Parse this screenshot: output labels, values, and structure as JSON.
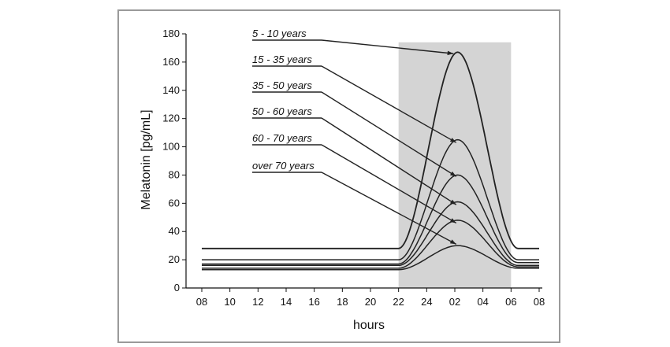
{
  "chart_data": {
    "type": "line",
    "title": "",
    "xlabel": "hours",
    "ylabel": "Melatonin [pg/mL]",
    "x_ticks": [
      "08",
      "10",
      "12",
      "14",
      "16",
      "18",
      "20",
      "22",
      "24",
      "02",
      "04",
      "06",
      "08"
    ],
    "y_ticks": [
      0,
      20,
      40,
      60,
      80,
      100,
      120,
      140,
      160,
      180
    ],
    "ylim": [
      0,
      180
    ],
    "grid": false,
    "shaded_region": {
      "from_hours": 22,
      "to_hours": 30
    },
    "series": [
      {
        "name": "5 - 10 years",
        "baseline": 28,
        "peak": 167,
        "end": 28
      },
      {
        "name": "15 - 35 years",
        "baseline": 20,
        "peak": 105,
        "end": 20
      },
      {
        "name": "35 - 50 years",
        "baseline": 17,
        "peak": 80,
        "end": 18
      },
      {
        "name": "50 - 60 years",
        "baseline": 16,
        "peak": 61,
        "end": 16
      },
      {
        "name": "60 - 70 years",
        "baseline": 14,
        "peak": 48,
        "end": 15
      },
      {
        "name": "over 70 years",
        "baseline": 13,
        "peak": 30,
        "end": 14
      }
    ],
    "peak_hour": 26.2,
    "rise_start_hour": 22
  }
}
